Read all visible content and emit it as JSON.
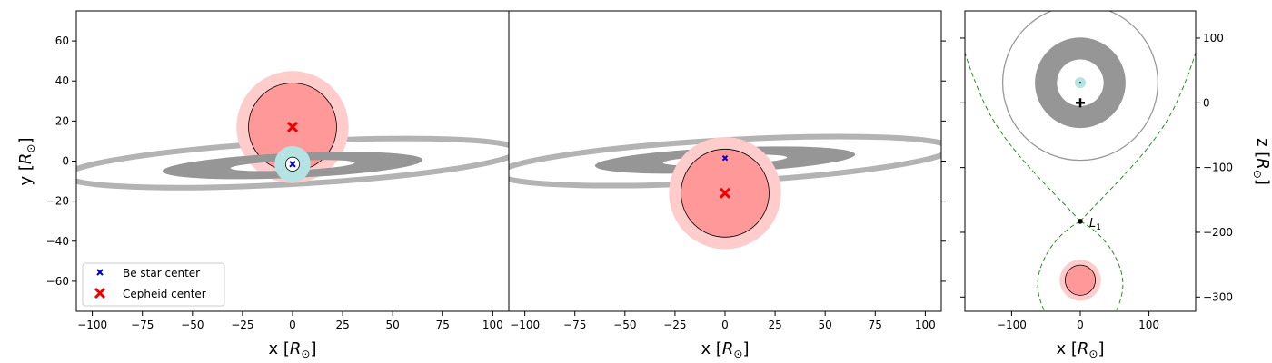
{
  "chart_data": [
    {
      "type": "scatter",
      "panel": "left",
      "xlabel": "x [R⊙]",
      "ylabel": "y [R⊙]",
      "xlim": [
        -108,
        108
      ],
      "ylim": [
        -75,
        75
      ],
      "xticks": [
        -100,
        -75,
        -50,
        -25,
        0,
        25,
        50,
        75,
        100
      ],
      "yticks": [
        -60,
        -40,
        -20,
        0,
        20,
        40,
        60
      ],
      "cepheid": {
        "center": [
          0,
          17
        ],
        "radius": 22,
        "halo_radius": 28
      },
      "be_star": {
        "center": [
          0,
          -1.5
        ],
        "radius": 3.5,
        "halo_radius": 9
      },
      "inner_disk": {
        "inner": [
          [
            -3,
            -2,
            23,
            2.8,
            -3
          ]
        ],
        "outer": [
          [
            0,
            -2,
            65,
            7.5,
            -3
          ]
        ]
      },
      "outer_ring": {
        "center": [
          0,
          -1
        ],
        "rx": 113,
        "ry": 10,
        "angle_deg": -5
      },
      "series": [
        {
          "name": "Be star center",
          "x": [
            0
          ],
          "y": [
            -1.5
          ],
          "marker": "x",
          "color": "#0000cc"
        },
        {
          "name": "Cepheid center",
          "x": [
            0
          ],
          "y": [
            17
          ],
          "marker": "x",
          "color": "#ee0000"
        }
      ],
      "legend": {
        "placement": "lower-left",
        "entries": [
          "Be star center",
          "Cepheid center"
        ]
      }
    },
    {
      "type": "scatter",
      "panel": "middle",
      "xlabel": "x [R⊙]",
      "xlim": [
        -108,
        108
      ],
      "ylim": [
        -75,
        75
      ],
      "xticks": [
        -100,
        -75,
        -50,
        -25,
        0,
        25,
        50,
        75,
        100
      ],
      "yticks": [
        -60,
        -40,
        -20,
        0,
        20,
        40,
        60
      ],
      "cepheid": {
        "center": [
          0,
          -16
        ],
        "radius": 22,
        "halo_radius": 28
      },
      "be_star": {
        "center": [
          0,
          1.5
        ]
      },
      "series": [
        {
          "name": "Be star center",
          "x": [
            0
          ],
          "y": [
            1.5
          ],
          "marker": "x",
          "color": "#0000cc"
        },
        {
          "name": "Cepheid center",
          "x": [
            0
          ],
          "y": [
            -16
          ],
          "marker": "x",
          "color": "#ee0000"
        }
      ]
    },
    {
      "type": "scatter",
      "panel": "right",
      "xlabel": "x [R⊙]",
      "ylabel": "z [R⊙]",
      "xlim": [
        -168,
        168
      ],
      "ylim": [
        -322,
        142
      ],
      "xticks": [
        -100,
        0,
        100
      ],
      "yticks": [
        100,
        0,
        -100,
        -200,
        -300
      ],
      "center_of_mass": [
        0,
        0
      ],
      "be_star": {
        "center": [
          0,
          31
        ],
        "radius": 4,
        "halo_radius": 8
      },
      "disk_annulus": {
        "center": [
          0,
          31
        ],
        "inner": 34,
        "outer": 66
      },
      "outer_circle": {
        "center": [
          0,
          31
        ],
        "radius": 113
      },
      "cepheid": {
        "center": [
          0,
          -274
        ],
        "radius": 22,
        "halo_radius": 30
      },
      "l1_point": {
        "label": "L",
        "subscript": "1",
        "x": 0,
        "y": -183
      },
      "roche_lobe": {
        "style": "dashed",
        "color": "#2a8c2a"
      }
    }
  ]
}
